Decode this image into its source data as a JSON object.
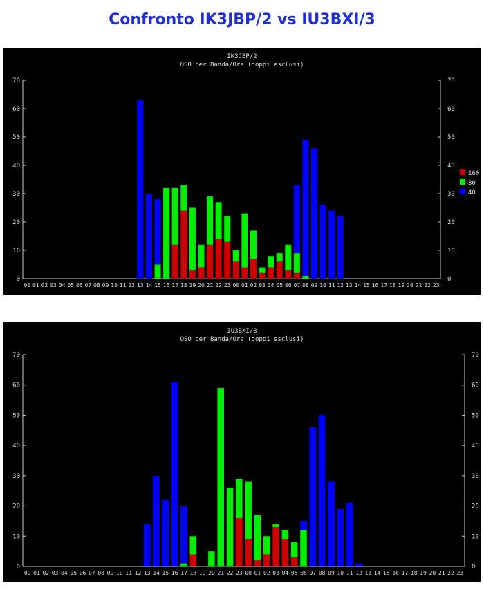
{
  "page": {
    "title": "Confronto IK3JBP/2 vs IU3BXI/3"
  },
  "colors": {
    "band_160": "#cc0000",
    "band_80": "#00ee00",
    "band_40": "#0000ff",
    "background": "#000000",
    "text": "#dddddd",
    "axis": "#cccccc"
  },
  "chart_data": [
    {
      "type": "bar",
      "stacked": true,
      "title": "IK3JBP/2",
      "subtitle": "QSO per Banda/Ora (doppi esclusi)",
      "xlabel": "",
      "ylabel": "",
      "ylim": [
        0,
        70
      ],
      "yticks": [
        0,
        10,
        20,
        30,
        40,
        50,
        60,
        70
      ],
      "grid": false,
      "legend": "right",
      "categories": [
        "00",
        "01",
        "02",
        "03",
        "04",
        "05",
        "06",
        "07",
        "08",
        "09",
        "10",
        "11",
        "12",
        "13",
        "14",
        "15",
        "16",
        "17",
        "18",
        "19",
        "20",
        "21",
        "22",
        "23",
        "00",
        "01",
        "02",
        "03",
        "04",
        "05",
        "06",
        "07",
        "08",
        "09",
        "10",
        "11",
        "12",
        "13",
        "14",
        "15",
        "16",
        "17",
        "18",
        "19",
        "20",
        "21",
        "22",
        "23"
      ],
      "series": [
        {
          "name": "160",
          "color": "#cc0000",
          "values": [
            0,
            0,
            0,
            0,
            0,
            0,
            0,
            0,
            0,
            0,
            0,
            0,
            0,
            0,
            0,
            0,
            0,
            12,
            24,
            3,
            4,
            12,
            14,
            13,
            6,
            4,
            7,
            2,
            4,
            6,
            3,
            2,
            0,
            0,
            0,
            0,
            0,
            0,
            0,
            0,
            0,
            0,
            0,
            0,
            0,
            0,
            0,
            0
          ]
        },
        {
          "name": "80",
          "color": "#00ee00",
          "values": [
            0,
            0,
            0,
            0,
            0,
            0,
            0,
            0,
            0,
            0,
            0,
            0,
            0,
            0,
            0,
            5,
            32,
            20,
            9,
            22,
            8,
            17,
            13,
            9,
            4,
            19,
            10,
            2,
            4,
            3,
            9,
            7,
            1,
            0,
            0,
            0,
            0,
            0,
            0,
            0,
            0,
            0,
            0,
            0,
            0,
            0,
            0,
            0
          ]
        },
        {
          "name": "40",
          "color": "#0000ff",
          "values": [
            0,
            0,
            0,
            0,
            0,
            0,
            0,
            0,
            0,
            0,
            0,
            0,
            0,
            63,
            30,
            23,
            0,
            0,
            0,
            0,
            0,
            0,
            0,
            0,
            0,
            0,
            0,
            0,
            0,
            0,
            0,
            24,
            48,
            46,
            26,
            24,
            22,
            0,
            0,
            0,
            0,
            0,
            0,
            0,
            0,
            0,
            0,
            0
          ]
        }
      ]
    },
    {
      "type": "bar",
      "stacked": true,
      "title": "IU3BXI/3",
      "subtitle": "QSO per Banda/Ora (doppi esclusi)",
      "xlabel": "",
      "ylabel": "",
      "ylim": [
        0,
        70
      ],
      "yticks": [
        0,
        10,
        20,
        30,
        40,
        50,
        60,
        70
      ],
      "grid": false,
      "legend": "none",
      "categories": [
        "00",
        "01",
        "02",
        "03",
        "04",
        "05",
        "06",
        "07",
        "08",
        "09",
        "10",
        "11",
        "12",
        "13",
        "14",
        "15",
        "16",
        "17",
        "18",
        "19",
        "20",
        "21",
        "22",
        "23",
        "00",
        "01",
        "02",
        "03",
        "04",
        "05",
        "06",
        "07",
        "08",
        "09",
        "10",
        "11",
        "12",
        "13",
        "14",
        "15",
        "16",
        "17",
        "18",
        "19",
        "20",
        "21",
        "22",
        "23"
      ],
      "series": [
        {
          "name": "160",
          "color": "#cc0000",
          "values": [
            0,
            0,
            0,
            0,
            0,
            0,
            0,
            0,
            0,
            0,
            0,
            0,
            0,
            0,
            0,
            0,
            0,
            0,
            4,
            0,
            0,
            0,
            0,
            16,
            9,
            2,
            4,
            13,
            9,
            3,
            0,
            0,
            0,
            0,
            0,
            0,
            0,
            0,
            0,
            0,
            0,
            0,
            0,
            0,
            0,
            0,
            0,
            0
          ]
        },
        {
          "name": "80",
          "color": "#00ee00",
          "values": [
            0,
            0,
            0,
            0,
            0,
            0,
            0,
            0,
            0,
            0,
            0,
            0,
            0,
            0,
            0,
            0,
            0,
            1,
            6,
            0,
            5,
            59,
            26,
            13,
            19,
            15,
            6,
            1,
            3,
            5,
            12,
            0,
            0,
            0,
            0,
            0,
            0,
            0,
            0,
            0,
            0,
            0,
            0,
            0,
            0,
            0,
            0,
            0
          ]
        },
        {
          "name": "40",
          "color": "#0000ff",
          "values": [
            0,
            0,
            0,
            0,
            0,
            0,
            0,
            0,
            0,
            0,
            0,
            0,
            0,
            14,
            30,
            22,
            61,
            19,
            0,
            0,
            0,
            0,
            0,
            0,
            0,
            0,
            0,
            0,
            0,
            0,
            3,
            46,
            50,
            28,
            19,
            21,
            1,
            0,
            0,
            0,
            0,
            0,
            0,
            0,
            0,
            0,
            0,
            0
          ]
        }
      ]
    }
  ]
}
